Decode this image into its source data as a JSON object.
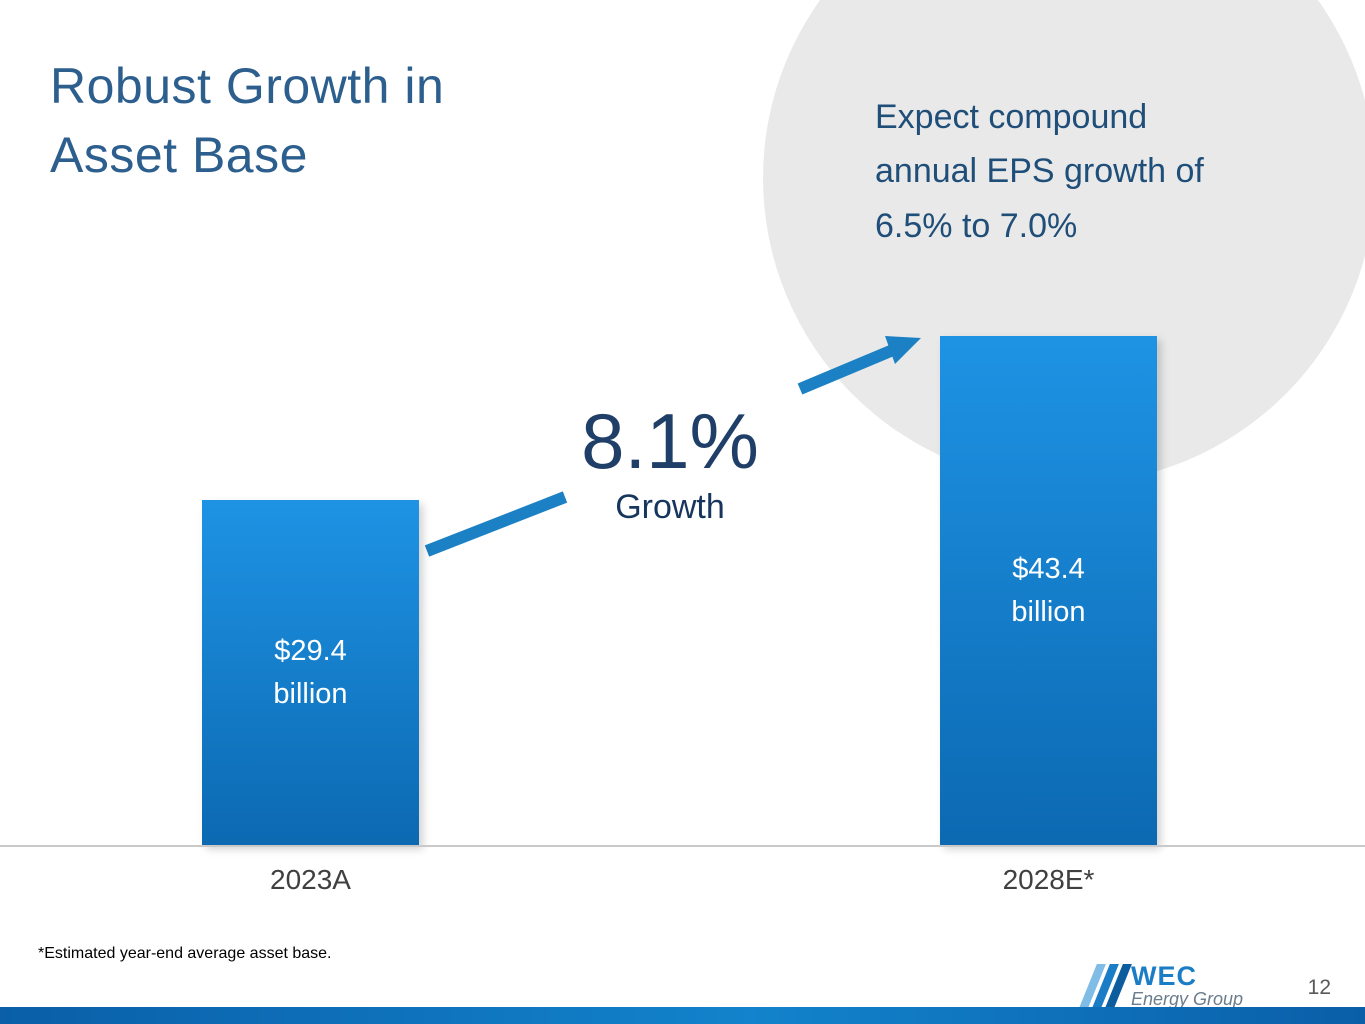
{
  "slide": {
    "title": "Robust Growth in\nAsset Base",
    "callout_text": "Expect compound\nannual EPS growth of\n6.5% to 7.0%",
    "growth": {
      "value": "8.1%",
      "label": "Growth"
    },
    "footnote": "*Estimated year-end average asset base.",
    "page_number": "12",
    "logo": {
      "name": "WEC",
      "subtitle": "Energy Group"
    }
  },
  "chart_data": {
    "type": "bar",
    "categories": [
      "2023A",
      "2028E*"
    ],
    "values": [
      29.4,
      43.4
    ],
    "unit": "billions of dollars (asset base)",
    "bars": [
      {
        "category": "2023A",
        "value": 29.4,
        "value_label": "$29.4\nbillion"
      },
      {
        "category": "2028E*",
        "value": 43.4,
        "value_label": "$43.4\nbillion"
      }
    ],
    "annotation": "8.1% Growth",
    "ylim": [
      0,
      43.4
    ],
    "gridlines": false,
    "legend": false,
    "title": "Robust Growth in Asset Base"
  },
  "colors": {
    "title_blue": "#2d5f8e",
    "dark_navy": "#1f3f68",
    "bar_top": "#1e93e4",
    "bar_bottom": "#0c69b2",
    "arrow_blue": "#1b80c4",
    "circle_gray": "#e9e9e9",
    "footer_blue": "#0e6fb8",
    "logo_blue": "#1a7dc5"
  }
}
